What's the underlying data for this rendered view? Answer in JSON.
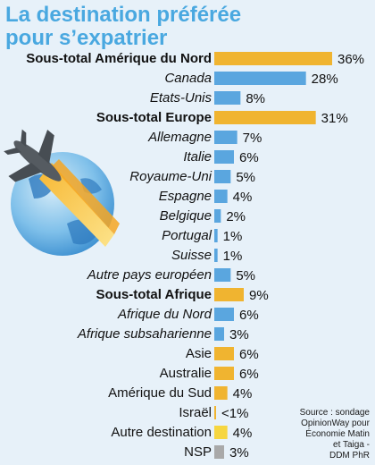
{
  "title_lines": [
    "La destination préférée",
    "pour s’expatrier"
  ],
  "source_lines": [
    "Source : sondage",
    "OpinionWay pour",
    "Économie Matin",
    "et Taiga -",
    "DDM PhR"
  ],
  "colors": {
    "background": "#e7f1f9",
    "title": "#49a8e0",
    "subtotal_bar": "#f0b430",
    "country_bar": "#5aa6df",
    "other_bar": "#f6d640",
    "nsp_bar": "#a9a9a9"
  },
  "icons": [
    "airplane-globe-icon"
  ],
  "chart_data": {
    "type": "bar",
    "orientation": "horizontal",
    "unit": "%",
    "categories": [
      "Sous-total Amérique du Nord",
      "Canada",
      "Etats-Unis",
      "Sous-total Europe",
      "Allemagne",
      "Italie",
      "Royaume-Uni",
      "Espagne",
      "Belgique",
      "Portugal",
      "Suisse",
      "Autre pays européen",
      "Sous-total Afrique",
      "Afrique du Nord",
      "Afrique subsaharienne",
      "Asie",
      "Australie",
      "Amérique du Sud",
      "Israël",
      "Autre destination",
      "NSP"
    ],
    "values": [
      36,
      28,
      8,
      31,
      7,
      6,
      5,
      4,
      2,
      1,
      1,
      5,
      9,
      6,
      3,
      6,
      6,
      4,
      0.5,
      4,
      3
    ],
    "value_labels": [
      "36%",
      "28%",
      "8%",
      "31%",
      "7%",
      "6%",
      "5%",
      "4%",
      "2%",
      "1%",
      "1%",
      "5%",
      "9%",
      "6%",
      "3%",
      "6%",
      "6%",
      "4%",
      "<1%",
      "4%",
      "3%"
    ],
    "label_styles": [
      "bold",
      "italic",
      "italic",
      "bold",
      "italic",
      "italic",
      "italic",
      "italic",
      "italic",
      "italic",
      "italic",
      "italic",
      "bold",
      "italic",
      "italic",
      "normal",
      "normal",
      "normal",
      "normal",
      "normal",
      "normal"
    ],
    "bar_colors": [
      "subtotal",
      "country",
      "country",
      "subtotal",
      "country",
      "country",
      "country",
      "country",
      "country",
      "country",
      "country",
      "country",
      "subtotal",
      "country",
      "country",
      "subtotal",
      "subtotal",
      "subtotal",
      "subtotal",
      "other",
      "nsp"
    ],
    "xlim": [
      0,
      36
    ],
    "grid": false,
    "legend": "none"
  }
}
